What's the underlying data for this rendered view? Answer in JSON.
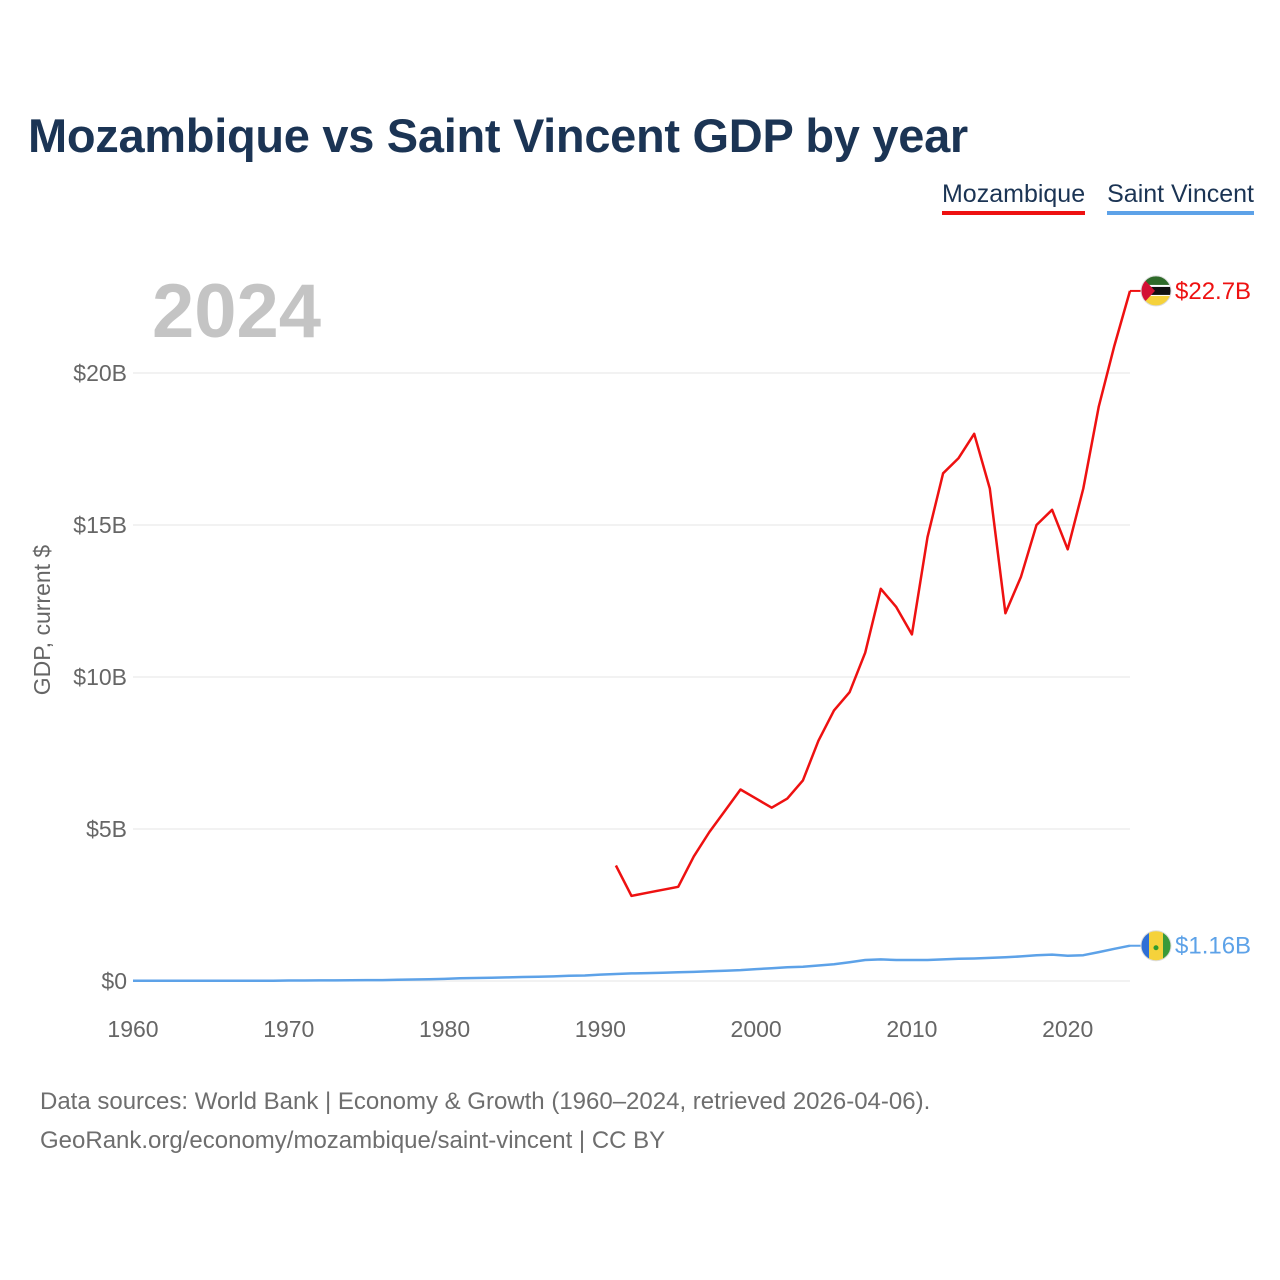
{
  "colors": {
    "mozambique": "#ee1111",
    "saint_vincent": "#5da2e8",
    "title": "#1b3454",
    "grid": "#e6e6e6",
    "axis_text": "#666666"
  },
  "legend": [
    {
      "label": "Mozambique",
      "color": "#ee1111"
    },
    {
      "label": "Saint Vincent",
      "color": "#5da2e8"
    }
  ],
  "chart_data": {
    "type": "line",
    "title": "Mozambique vs Saint Vincent GDP by year",
    "year_label": "2024",
    "ylabel": "GDP, current $",
    "xlabel": "",
    "xlim": [
      1960,
      2024
    ],
    "ylim": [
      0,
      23
    ],
    "y_unit": "billion USD",
    "x_ticks": [
      1960,
      1970,
      1980,
      1990,
      2000,
      2010,
      2020
    ],
    "y_ticks": [
      {
        "value": 0,
        "label": "$0"
      },
      {
        "value": 5,
        "label": "$5B"
      },
      {
        "value": 10,
        "label": "$10B"
      },
      {
        "value": 15,
        "label": "$15B"
      },
      {
        "value": 20,
        "label": "$20B"
      }
    ],
    "grid": true,
    "series": [
      {
        "name": "Mozambique",
        "color": "#ee1111",
        "end_label": "$22.7B",
        "x": [
          1991,
          1992,
          1993,
          1994,
          1995,
          1996,
          1997,
          1998,
          1999,
          2000,
          2001,
          2002,
          2003,
          2004,
          2005,
          2006,
          2007,
          2008,
          2009,
          2010,
          2011,
          2012,
          2013,
          2014,
          2015,
          2016,
          2017,
          2018,
          2019,
          2020,
          2021,
          2022,
          2023,
          2024
        ],
        "values": [
          3.8,
          2.8,
          2.9,
          3.0,
          3.1,
          4.1,
          4.9,
          5.6,
          6.3,
          6.0,
          5.7,
          6.0,
          6.6,
          7.9,
          8.9,
          9.5,
          10.8,
          12.9,
          12.3,
          11.4,
          14.6,
          16.7,
          17.2,
          18.0,
          16.2,
          12.1,
          13.3,
          15.0,
          15.5,
          14.2,
          16.2,
          18.9,
          20.9,
          22.7
        ]
      },
      {
        "name": "Saint Vincent",
        "color": "#5da2e8",
        "end_label": "$1.16B",
        "x": [
          1960,
          1961,
          1962,
          1963,
          1964,
          1965,
          1966,
          1967,
          1968,
          1969,
          1970,
          1971,
          1972,
          1973,
          1974,
          1975,
          1976,
          1977,
          1978,
          1979,
          1980,
          1981,
          1982,
          1983,
          1984,
          1985,
          1986,
          1987,
          1988,
          1989,
          1990,
          1991,
          1992,
          1993,
          1994,
          1995,
          1996,
          1997,
          1998,
          1999,
          2000,
          2001,
          2002,
          2003,
          2004,
          2005,
          2006,
          2007,
          2008,
          2009,
          2010,
          2011,
          2012,
          2013,
          2014,
          2015,
          2016,
          2017,
          2018,
          2019,
          2020,
          2021,
          2022,
          2023,
          2024
        ],
        "values": [
          0.01,
          0.01,
          0.01,
          0.01,
          0.01,
          0.01,
          0.01,
          0.01,
          0.01,
          0.01,
          0.015,
          0.015,
          0.02,
          0.02,
          0.025,
          0.03,
          0.03,
          0.04,
          0.05,
          0.06,
          0.07,
          0.09,
          0.1,
          0.11,
          0.12,
          0.13,
          0.14,
          0.15,
          0.17,
          0.18,
          0.21,
          0.23,
          0.25,
          0.26,
          0.27,
          0.29,
          0.3,
          0.32,
          0.34,
          0.36,
          0.39,
          0.42,
          0.45,
          0.47,
          0.51,
          0.55,
          0.62,
          0.69,
          0.71,
          0.69,
          0.69,
          0.69,
          0.71,
          0.73,
          0.74,
          0.76,
          0.78,
          0.81,
          0.85,
          0.87,
          0.83,
          0.85,
          0.95,
          1.06,
          1.16
        ]
      }
    ]
  },
  "footer": {
    "line1": "Data sources: World Bank | Economy & Growth (1960–2024, retrieved 2026-04-06).",
    "line2": "GeoRank.org/economy/mozambique/saint-vincent | CC BY"
  },
  "flags": {
    "mozambique": "mozambique-flag-icon",
    "saint_vincent": "saint-vincent-flag-icon"
  }
}
